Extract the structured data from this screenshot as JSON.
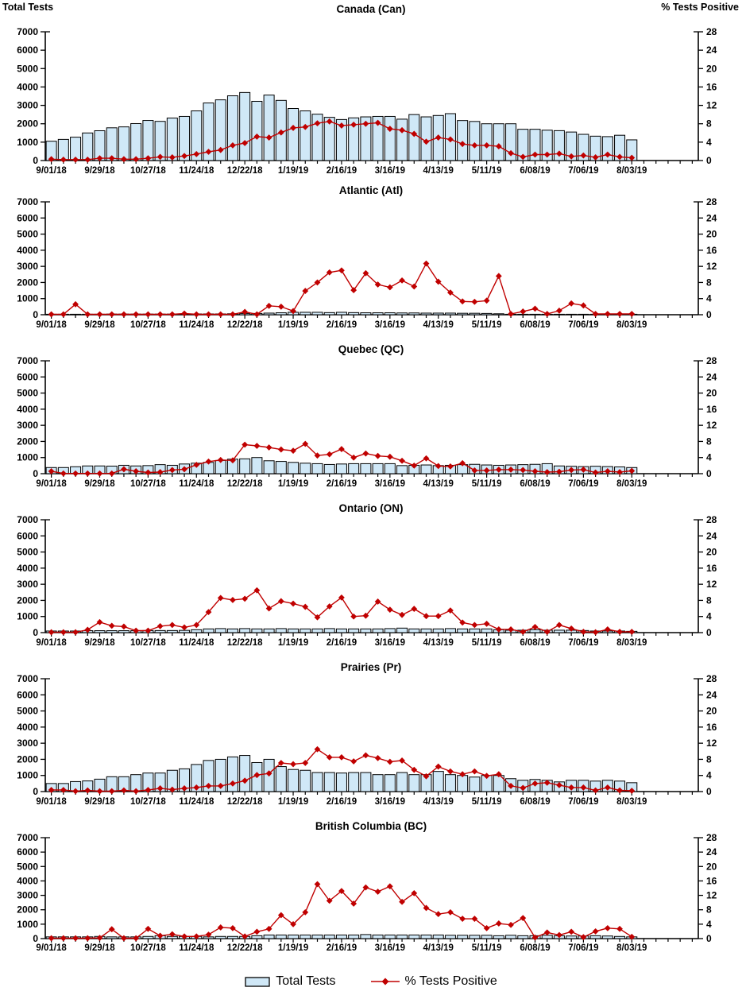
{
  "colors": {
    "bar_fill": "#d0e8f7",
    "bar_stroke": "#000000",
    "line_color": "#c00000",
    "background": "#ffffff"
  },
  "chart_data": {
    "type": "bar+line small multiples",
    "description": "Weekly influenza-style surveillance: Total Tests (bars, left axis) and % Tests Positive (line with diamond markers, right axis), 6 stacked panels.",
    "left_axis": {
      "label": "Total Tests",
      "min": 0,
      "max": 7000,
      "step": 1000,
      "ticks": [
        0,
        1000,
        2000,
        3000,
        4000,
        5000,
        6000,
        7000
      ]
    },
    "right_axis": {
      "label": "% Tests Positive",
      "min": 0,
      "max": 28,
      "step": 4,
      "ticks": [
        0,
        4,
        8,
        12,
        16,
        20,
        24,
        28
      ]
    },
    "x_tick_labels": [
      "9/01/18",
      "9/29/18",
      "10/27/18",
      "11/24/18",
      "12/22/18",
      "1/19/19",
      "2/16/19",
      "3/16/19",
      "4/13/19",
      "5/11/19",
      "6/08/19",
      "7/06/19",
      "8/03/19"
    ],
    "n_weeks": 49,
    "x_slots": 54,
    "grid": false,
    "legend": [
      {
        "label": "Total Tests",
        "swatch": "bar"
      },
      {
        "label": "% Tests Positive",
        "swatch": "line-diamond"
      }
    ],
    "panels": [
      {
        "title": "Canada (Can)",
        "series": [
          {
            "name": "Total Tests",
            "type": "bar",
            "axis": "left",
            "values": [
              1050,
              1150,
              1270,
              1500,
              1620,
              1780,
              1830,
              2010,
              2180,
              2130,
              2310,
              2400,
              2700,
              3130,
              3300,
              3520,
              3700,
              3220,
              3560,
              3270,
              2830,
              2700,
              2520,
              2350,
              2230,
              2320,
              2375,
              2400,
              2400,
              2250,
              2500,
              2375,
              2450,
              2550,
              2175,
              2125,
              2000,
              2000,
              2000,
              1700,
              1700,
              1650,
              1625,
              1550,
              1425,
              1325,
              1300,
              1375,
              1125
            ]
          },
          {
            "name": "% Tests Positive",
            "type": "line",
            "axis": "right",
            "values": [
              0.3,
              0.2,
              0.2,
              0.2,
              0.5,
              0.5,
              0.3,
              0.3,
              0.5,
              0.8,
              0.7,
              1.0,
              1.4,
              1.9,
              2.3,
              3.3,
              3.8,
              5.2,
              5.0,
              6.1,
              7.1,
              7.3,
              8.1,
              8.5,
              7.6,
              7.8,
              8.0,
              8.2,
              6.9,
              6.6,
              5.8,
              4.1,
              5.0,
              4.6,
              3.6,
              3.3,
              3.3,
              3.1,
              1.6,
              0.8,
              1.3,
              1.3,
              1.5,
              0.9,
              1.1,
              0.7,
              1.3,
              0.8,
              0.6
            ]
          }
        ]
      },
      {
        "title": "Atlantic (Atl)",
        "series": [
          {
            "name": "Total Tests",
            "type": "bar",
            "axis": "left",
            "values": [
              30,
              30,
              30,
              30,
              30,
              40,
              40,
              40,
              40,
              40,
              40,
              50,
              50,
              50,
              50,
              60,
              80,
              80,
              100,
              120,
              150,
              150,
              150,
              130,
              150,
              130,
              120,
              120,
              120,
              110,
              110,
              100,
              100,
              100,
              90,
              90,
              80,
              60,
              20,
              20,
              20,
              20,
              20,
              20,
              10,
              10,
              10,
              10,
              10
            ]
          },
          {
            "name": "% Tests Positive",
            "type": "line",
            "axis": "right",
            "values": [
              0.1,
              0.1,
              2.6,
              0.1,
              0.1,
              0.1,
              0.1,
              0.1,
              0.1,
              0.1,
              0.1,
              0.3,
              0.1,
              0.1,
              0.1,
              0.1,
              0.7,
              0.1,
              2.2,
              2.0,
              0.9,
              5.9,
              8.0,
              10.5,
              11.0,
              6.1,
              10.3,
              7.5,
              6.8,
              8.5,
              7.0,
              12.7,
              8.2,
              5.5,
              3.3,
              3.2,
              3.5,
              9.6,
              0.2,
              0.8,
              1.5,
              0.2,
              1.0,
              2.8,
              2.3,
              0.2,
              0.2,
              0.2,
              0.2
            ]
          }
        ]
      },
      {
        "title": "Quebec (QC)",
        "series": [
          {
            "name": "Total Tests",
            "type": "bar",
            "axis": "left",
            "values": [
              380,
              380,
              430,
              480,
              480,
              470,
              520,
              480,
              500,
              560,
              520,
              600,
              650,
              700,
              820,
              900,
              920,
              1000,
              800,
              760,
              700,
              650,
              620,
              570,
              600,
              620,
              620,
              620,
              620,
              500,
              520,
              540,
              500,
              520,
              560,
              580,
              540,
              520,
              540,
              560,
              580,
              620,
              480,
              460,
              440,
              460,
              440,
              420,
              380
            ]
          },
          {
            "name": "% Tests Positive",
            "type": "line",
            "axis": "right",
            "values": [
              0.6,
              0.05,
              0.05,
              0.05,
              0.05,
              0.05,
              1.1,
              0.6,
              0.3,
              0.4,
              0.9,
              1.1,
              2.2,
              3.0,
              3.4,
              3.3,
              7.2,
              6.9,
              6.5,
              6.0,
              5.7,
              7.4,
              4.5,
              4.8,
              6.1,
              4.0,
              5.0,
              4.4,
              4.2,
              3.2,
              2.0,
              3.8,
              1.9,
              1.8,
              2.6,
              0.8,
              0.8,
              1.0,
              1.0,
              0.9,
              0.6,
              0.4,
              0.5,
              0.9,
              1.0,
              0.3,
              0.6,
              0.4,
              0.7
            ]
          }
        ]
      },
      {
        "title": "Ontario (ON)",
        "series": [
          {
            "name": "Total Tests",
            "type": "bar",
            "axis": "left",
            "values": [
              100,
              100,
              100,
              120,
              120,
              120,
              120,
              120,
              130,
              130,
              130,
              140,
              180,
              230,
              250,
              230,
              250,
              230,
              230,
              250,
              230,
              230,
              230,
              250,
              230,
              230,
              230,
              230,
              250,
              280,
              230,
              230,
              230,
              250,
              230,
              230,
              230,
              180,
              150,
              150,
              180,
              150,
              150,
              150,
              130,
              100,
              100,
              100,
              80
            ]
          },
          {
            "name": "% Tests Positive",
            "type": "line",
            "axis": "right",
            "values": [
              0.1,
              0.1,
              0.1,
              0.7,
              2.6,
              1.7,
              1.5,
              0.5,
              0.5,
              1.6,
              1.9,
              1.3,
              1.9,
              5.1,
              8.6,
              8.1,
              8.4,
              10.5,
              6.0,
              7.8,
              7.2,
              6.4,
              3.8,
              6.5,
              8.7,
              4.0,
              4.2,
              7.7,
              5.7,
              4.4,
              5.9,
              4.1,
              4.1,
              5.5,
              2.5,
              1.9,
              2.2,
              0.8,
              0.8,
              0.2,
              1.4,
              0.2,
              1.9,
              1.0,
              0.2,
              0.1,
              0.8,
              0.2,
              0.2
            ]
          }
        ]
      },
      {
        "title": "Prairies (Pr)",
        "series": [
          {
            "name": "Total Tests",
            "type": "bar",
            "axis": "left",
            "values": [
              500,
              500,
              620,
              660,
              770,
              920,
              920,
              1050,
              1150,
              1150,
              1320,
              1410,
              1680,
              1930,
              2000,
              2150,
              2240,
              1800,
              2000,
              1550,
              1370,
              1320,
              1180,
              1180,
              1150,
              1180,
              1180,
              1050,
              1050,
              1180,
              1050,
              1050,
              1250,
              1050,
              1000,
              900,
              1000,
              1000,
              800,
              700,
              750,
              700,
              600,
              700,
              700,
              650,
              700,
              650,
              550
            ]
          },
          {
            "name": "% Tests Positive",
            "type": "line",
            "axis": "right",
            "values": [
              0.4,
              0.4,
              0.1,
              0.3,
              0.1,
              0.1,
              0.3,
              0.1,
              0.4,
              0.8,
              0.5,
              0.8,
              1.0,
              1.4,
              1.4,
              2.0,
              2.7,
              4.1,
              4.5,
              7.1,
              6.8,
              7.1,
              10.5,
              8.5,
              8.5,
              7.5,
              9.0,
              8.3,
              7.4,
              7.7,
              5.4,
              3.8,
              6.2,
              5.0,
              4.3,
              5.0,
              3.9,
              4.3,
              1.4,
              0.9,
              2.0,
              2.2,
              1.6,
              1.0,
              1.0,
              0.3,
              1.0,
              0.3,
              0.2
            ]
          }
        ]
      },
      {
        "title": "British Columbia (BC)",
        "series": [
          {
            "name": "Total Tests",
            "type": "bar",
            "axis": "left",
            "values": [
              120,
              120,
              120,
              120,
              150,
              120,
              120,
              120,
              150,
              200,
              150,
              150,
              150,
              120,
              150,
              150,
              150,
              200,
              250,
              250,
              250,
              250,
              250,
              250,
              250,
              250,
              280,
              250,
              250,
              250,
              250,
              250,
              250,
              230,
              230,
              230,
              230,
              200,
              230,
              200,
              200,
              230,
              200,
              180,
              180,
              200,
              180,
              150,
              120
            ]
          },
          {
            "name": "% Tests Positive",
            "type": "line",
            "axis": "right",
            "values": [
              0.1,
              0.1,
              0.1,
              0.1,
              0.2,
              2.6,
              0.1,
              0.1,
              2.7,
              0.8,
              1.2,
              0.6,
              0.6,
              1.1,
              3.1,
              2.9,
              0.6,
              1.9,
              2.7,
              6.5,
              4.0,
              7.3,
              15.1,
              10.5,
              13.2,
              9.7,
              14.2,
              13.0,
              14.5,
              10.2,
              12.6,
              8.5,
              6.8,
              7.3,
              5.5,
              5.5,
              2.9,
              4.2,
              3.8,
              5.7,
              0.3,
              1.7,
              1.0,
              1.9,
              0.4,
              2.0,
              2.9,
              2.7,
              0.5
            ]
          }
        ]
      }
    ]
  }
}
